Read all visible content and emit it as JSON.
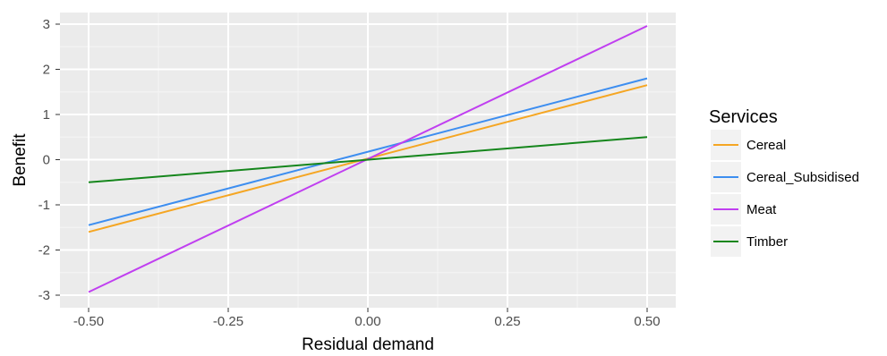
{
  "chart_data": {
    "type": "line",
    "xlabel": "Residual demand",
    "ylabel": "Benefit",
    "xlim": [
      -0.5,
      0.5
    ],
    "ylim": [
      -3,
      3
    ],
    "x_ticks": [
      -0.5,
      -0.25,
      0.0,
      0.25,
      0.5
    ],
    "x_tick_labels": [
      "-0.50",
      "-0.25",
      "0.00",
      "0.25",
      "0.50"
    ],
    "y_ticks": [
      -3,
      -2,
      -1,
      0,
      1,
      2,
      3
    ],
    "y_tick_labels": [
      "-3",
      "-2",
      "-1",
      "0",
      "1",
      "2",
      "3"
    ],
    "grid": true,
    "legend": {
      "title": "Services",
      "placement": "right"
    },
    "series": [
      {
        "name": "Cereal",
        "color": "#f5a623",
        "x": [
          -0.5,
          0.5
        ],
        "y": [
          -1.6,
          1.65
        ]
      },
      {
        "name": "Cereal_Subsidised",
        "color": "#3d8ef0",
        "x": [
          -0.5,
          0.5
        ],
        "y": [
          -1.45,
          1.8
        ]
      },
      {
        "name": "Meat",
        "color": "#c03ff0",
        "x": [
          -0.5,
          0.5
        ],
        "y": [
          -2.93,
          2.96
        ]
      },
      {
        "name": "Timber",
        "color": "#15861c",
        "x": [
          -0.5,
          0.5
        ],
        "y": [
          -0.5,
          0.5
        ]
      }
    ]
  }
}
